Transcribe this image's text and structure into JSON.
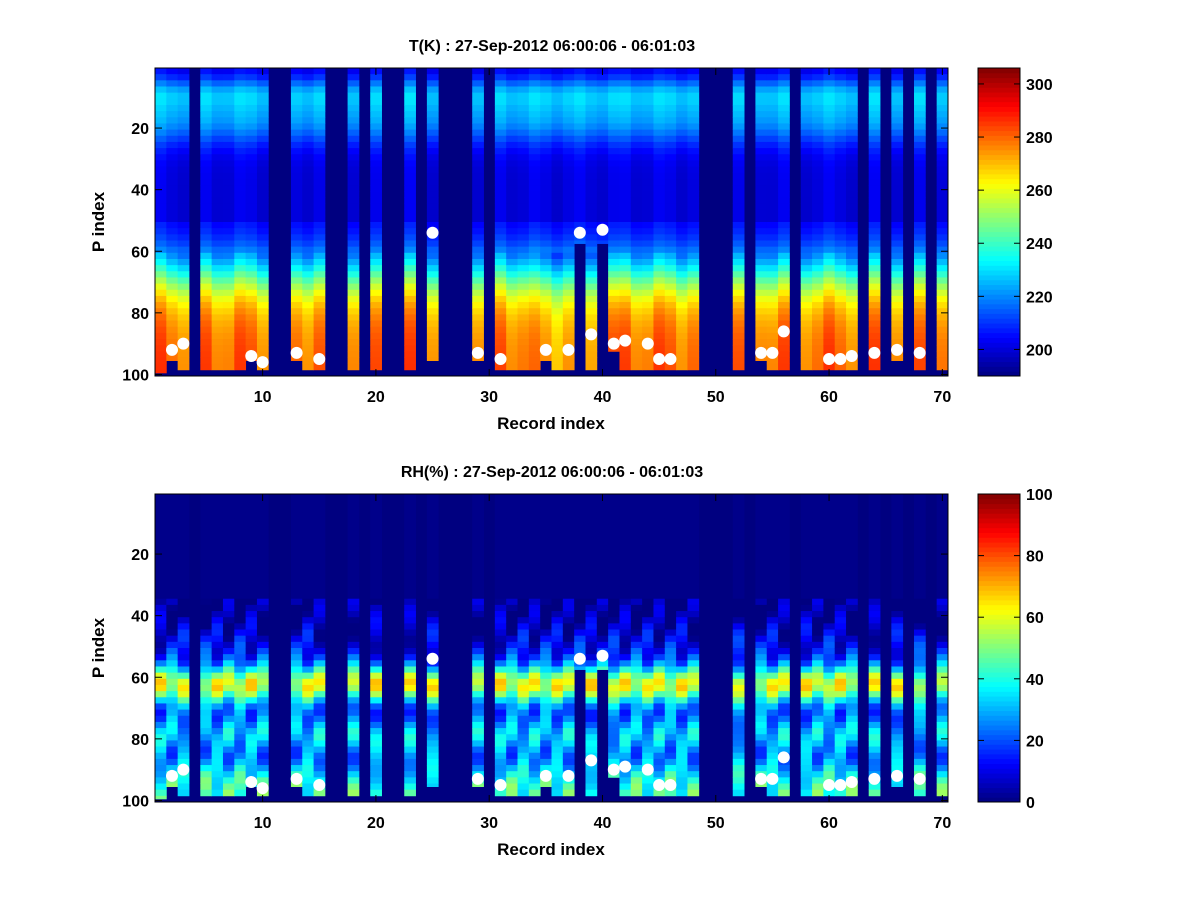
{
  "chart_data": [
    {
      "type": "heatmap",
      "title": "T(K) : 27-Sep-2012 06:00:06 - 06:01:03",
      "xlabel": "Record index",
      "ylabel": "P index",
      "xlim": [
        0.5,
        70.5
      ],
      "ylim": [
        100.5,
        0.5
      ],
      "y_reversed": true,
      "xticks": [
        10,
        20,
        30,
        40,
        50,
        60,
        70
      ],
      "yticks": [
        20,
        40,
        60,
        80,
        100
      ],
      "colorbar": {
        "clim": [
          190,
          306
        ],
        "ticks": [
          200,
          220,
          240,
          260,
          280,
          300
        ]
      },
      "colormap": "jet",
      "invalid_columns": [
        4,
        11,
        12,
        16,
        17,
        19,
        21,
        22,
        24,
        26,
        27,
        28,
        30,
        49,
        50,
        51,
        53,
        57,
        63,
        65,
        67,
        69
      ],
      "profile_bottom": {
        "1": 99,
        "2": 95,
        "3": 98,
        "5": 98,
        "6": 98,
        "7": 98,
        "8": 98,
        "9": 95,
        "10": 98,
        "13": 95,
        "14": 98,
        "15": 98,
        "18": 98,
        "20": 98,
        "23": 98,
        "25": 95,
        "29": 95,
        "31": 98,
        "32": 98,
        "33": 98,
        "34": 98,
        "35": 95,
        "36": 98,
        "37": 98,
        "38": 57,
        "39": 98,
        "40": 57,
        "41": 92,
        "42": 98,
        "43": 98,
        "44": 98,
        "45": 98,
        "46": 98,
        "47": 98,
        "48": 98,
        "52": 98,
        "54": 95,
        "55": 98,
        "56": 98,
        "58": 98,
        "59": 98,
        "60": 98,
        "61": 98,
        "62": 98,
        "64": 98,
        "66": 95,
        "68": 98,
        "70": 98
      },
      "markers": {
        "x": [
          2,
          3,
          9,
          10,
          13,
          15,
          25,
          29,
          31,
          35,
          37,
          38,
          39,
          40,
          41,
          42,
          44,
          45,
          46,
          54,
          55,
          56,
          60,
          61,
          62,
          64,
          66,
          68
        ],
        "y": [
          92,
          90,
          94,
          96,
          93,
          95,
          54,
          93,
          95,
          92,
          92,
          54,
          87,
          53,
          90,
          89,
          90,
          95,
          95,
          93,
          93,
          86,
          95,
          95,
          94,
          93,
          92,
          93
        ],
        "color": "#ffffff"
      }
    },
    {
      "type": "heatmap",
      "title": "RH(%) : 27-Sep-2012 06:00:06 - 06:01:03",
      "xlabel": "Record index",
      "ylabel": "P index",
      "xlim": [
        0.5,
        70.5
      ],
      "ylim": [
        100.5,
        0.5
      ],
      "y_reversed": true,
      "xticks": [
        10,
        20,
        30,
        40,
        50,
        60,
        70
      ],
      "yticks": [
        20,
        40,
        60,
        80,
        100
      ],
      "colorbar": {
        "clim": [
          0,
          100
        ],
        "ticks": [
          0,
          20,
          40,
          60,
          80,
          100
        ]
      },
      "colormap": "jet",
      "invalid_columns": [
        4,
        11,
        12,
        16,
        17,
        19,
        21,
        22,
        24,
        26,
        27,
        28,
        30,
        49,
        50,
        51,
        53,
        57,
        63,
        65,
        67,
        69
      ],
      "markers": {
        "x": [
          2,
          3,
          9,
          10,
          13,
          15,
          25,
          29,
          31,
          35,
          37,
          38,
          39,
          40,
          41,
          42,
          44,
          45,
          46,
          54,
          55,
          56,
          60,
          61,
          62,
          64,
          66,
          68
        ],
        "y": [
          92,
          90,
          94,
          96,
          93,
          95,
          54,
          93,
          95,
          92,
          92,
          54,
          87,
          53,
          90,
          89,
          90,
          95,
          95,
          93,
          93,
          86,
          95,
          95,
          94,
          93,
          92,
          93
        ],
        "color": "#ffffff"
      }
    }
  ]
}
